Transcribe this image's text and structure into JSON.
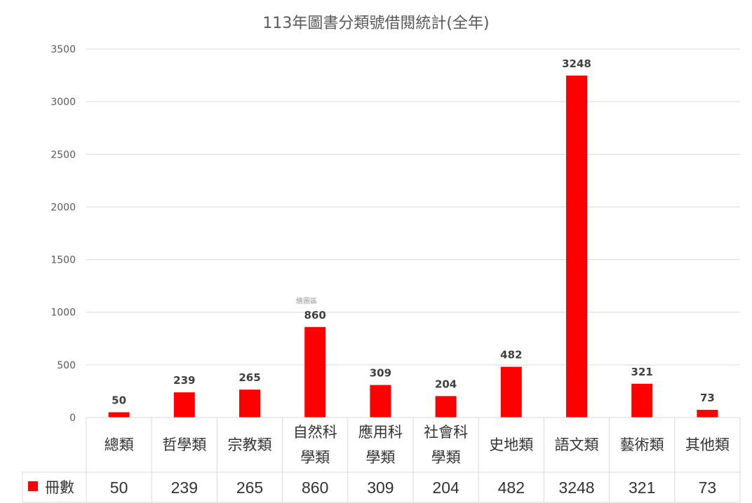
{
  "chart_data": {
    "type": "bar",
    "title": "113年圖書分類號借閱統計(全年)",
    "categories": [
      [
        "總類"
      ],
      [
        "哲學類"
      ],
      [
        "宗教類"
      ],
      [
        "自然科",
        "學類"
      ],
      [
        "應用科",
        "學類"
      ],
      [
        "社會科",
        "學類"
      ],
      [
        "史地類"
      ],
      [
        "語文類"
      ],
      [
        "藝術類"
      ],
      [
        "其他類"
      ]
    ],
    "series": [
      {
        "name": "冊數",
        "color": "#ff0000",
        "values": [
          50,
          239,
          265,
          860,
          309,
          204,
          482,
          3248,
          321,
          73
        ]
      }
    ],
    "yticks": [
      0,
      500,
      1000,
      1500,
      2000,
      2500,
      3000,
      3500
    ],
    "ylim": [
      0,
      3500
    ],
    "grid": true,
    "legend": "data-table-left",
    "annotation": "繪圖區",
    "data_table": true
  }
}
